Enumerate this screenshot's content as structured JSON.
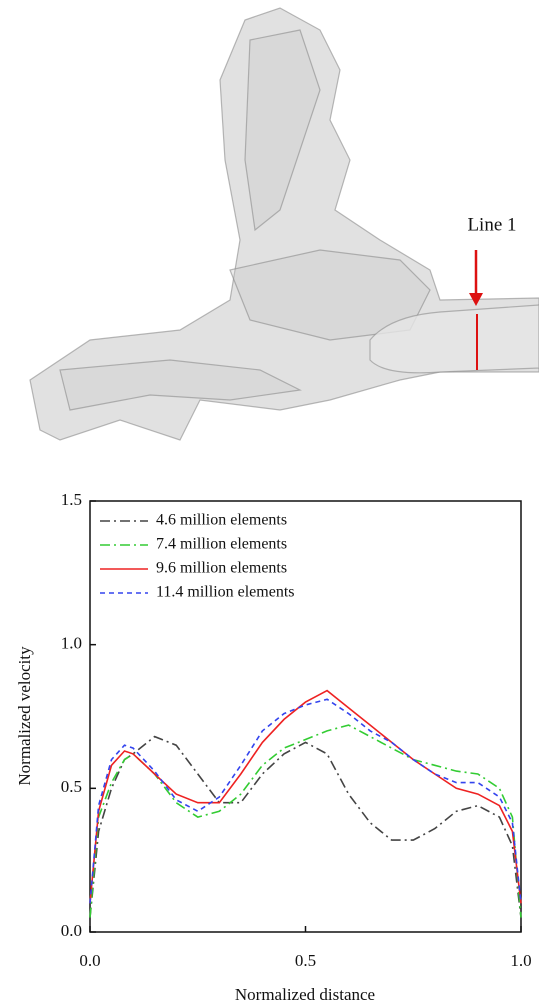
{
  "figure_label": "Line 1",
  "chart_data": {
    "type": "line",
    "x_label": "Normalized distance",
    "y_label": "Normalized velocity",
    "xlim": [
      0,
      1
    ],
    "ylim": [
      0,
      1.5
    ],
    "xticks": [
      {
        "value": 0,
        "label": "0.0"
      },
      0.5,
      {
        "value": 1,
        "label": "1.0"
      }
    ],
    "yticks": [
      {
        "value": 0,
        "label": "0.0"
      },
      0.5,
      {
        "value": 1,
        "label": "1.0"
      },
      1.5
    ],
    "legend": "upper left",
    "x": [
      0,
      0.02,
      0.05,
      0.08,
      0.1,
      0.15,
      0.2,
      0.25,
      0.3,
      0.35,
      0.4,
      0.45,
      0.5,
      0.55,
      0.6,
      0.65,
      0.7,
      0.75,
      0.8,
      0.85,
      0.9,
      0.95,
      0.98,
      1.0
    ],
    "series": [
      {
        "name": "4.6 million elements",
        "color": "#444444",
        "dash": "10,4,2,4",
        "values": [
          0.05,
          0.35,
          0.5,
          0.6,
          0.62,
          0.68,
          0.65,
          0.55,
          0.45,
          0.45,
          0.55,
          0.62,
          0.66,
          0.62,
          0.48,
          0.38,
          0.32,
          0.32,
          0.36,
          0.42,
          0.44,
          0.4,
          0.3,
          0.05
        ]
      },
      {
        "name": "7.4 million elements",
        "color": "#33cc33",
        "dash": "10,4,2,4",
        "values": [
          0.05,
          0.4,
          0.52,
          0.6,
          0.62,
          0.55,
          0.45,
          0.4,
          0.42,
          0.48,
          0.58,
          0.64,
          0.67,
          0.7,
          0.72,
          0.68,
          0.64,
          0.6,
          0.58,
          0.56,
          0.55,
          0.5,
          0.4,
          0.05
        ]
      },
      {
        "name": "9.6 million elements",
        "color": "#ee2222",
        "dash": "none",
        "values": [
          0.1,
          0.42,
          0.58,
          0.63,
          0.62,
          0.55,
          0.48,
          0.45,
          0.45,
          0.55,
          0.66,
          0.74,
          0.8,
          0.84,
          0.78,
          0.72,
          0.66,
          0.6,
          0.55,
          0.5,
          0.48,
          0.44,
          0.35,
          0.1
        ]
      },
      {
        "name": "11.4 million elements",
        "color": "#3344ee",
        "dash": "5,4",
        "values": [
          0.1,
          0.44,
          0.6,
          0.65,
          0.64,
          0.56,
          0.46,
          0.42,
          0.47,
          0.58,
          0.7,
          0.76,
          0.79,
          0.81,
          0.76,
          0.7,
          0.66,
          0.6,
          0.55,
          0.52,
          0.52,
          0.47,
          0.38,
          0.1
        ]
      }
    ]
  }
}
